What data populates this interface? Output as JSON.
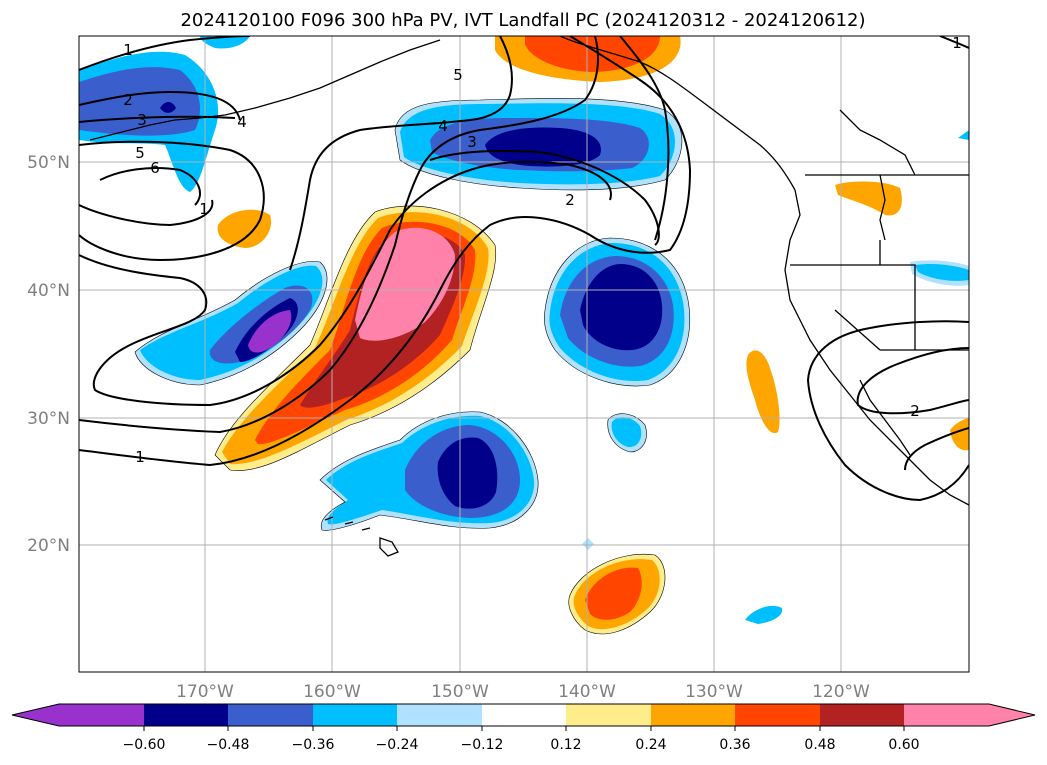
{
  "title": "2024120100 F096 300 hPa PV, IVT Landfall PC (2024120312 - 2024120612)",
  "lat_labels": [
    "50°N",
    "40°N",
    "30°N",
    "20°N"
  ],
  "lon_labels": [
    "170°W",
    "160°W",
    "150°W",
    "140°W",
    "130°W",
    "120°W"
  ],
  "colorbar": {
    "ticks": [
      "−0.60",
      "−0.48",
      "−0.36",
      "−0.24",
      "−0.12",
      "0.12",
      "0.24",
      "0.36",
      "0.48",
      "0.60"
    ],
    "colors": [
      "#9932cc",
      "#00008b",
      "#3a5fcd",
      "#00bfff",
      "#b0e2ff",
      "#ffffff",
      "#ffec8b",
      "#ffa500",
      "#ff4500",
      "#b22222",
      "#ff82ab"
    ]
  },
  "contour_labels": [
    "1",
    "2",
    "3",
    "4",
    "5",
    "6",
    "1",
    "1",
    "4",
    "3",
    "5",
    "2",
    "2",
    "1"
  ],
  "colors": {
    "purple": "#9932cc",
    "navy": "#00008b",
    "royal": "#3a5fcd",
    "sky": "#00bfff",
    "pale_blue": "#b0e2ff",
    "pale_yellow": "#ffec8b",
    "orange": "#ffa500",
    "red_orange": "#ff4500",
    "firebrick": "#b22222",
    "pink": "#ff82ab"
  }
}
